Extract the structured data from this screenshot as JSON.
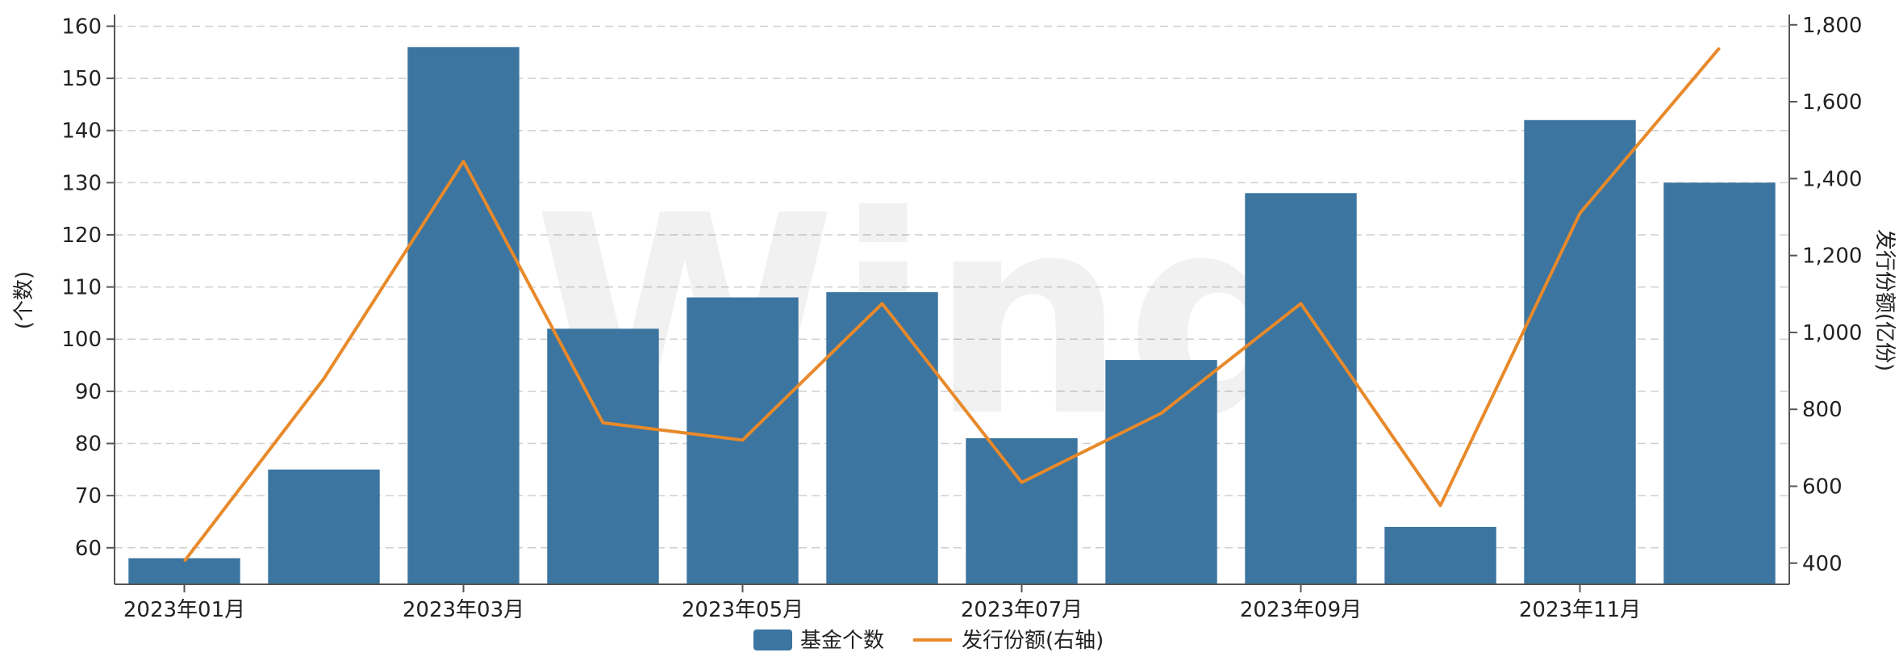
{
  "chart_data": {
    "type": "bar",
    "categories": [
      "2023年01月",
      "2023年02月",
      "2023年03月",
      "2023年04月",
      "2023年05月",
      "2023年06月",
      "2023年07月",
      "2023年08月",
      "2023年09月",
      "2023年10月",
      "2023年11月",
      "2023年12月"
    ],
    "x_tick_labels": [
      "2023年01月",
      "2023年03月",
      "2023年05月",
      "2023年07月",
      "2023年09月",
      "2023年11月"
    ],
    "series": [
      {
        "name": "基金个数",
        "kind": "bar",
        "axis": "left",
        "color": "#3b75a0",
        "values": [
          58,
          75,
          156,
          102,
          108,
          109,
          81,
          96,
          128,
          64,
          142,
          130
        ]
      },
      {
        "name": "发行份额(右轴)",
        "kind": "line",
        "axis": "right",
        "color": "#e8892a",
        "values": [
          405,
          880,
          1445,
          765,
          720,
          1075,
          610,
          790,
          1075,
          550,
          1310,
          1740
        ]
      }
    ],
    "ylabel": "(个数)",
    "ylabel_right": "发行份额(亿份)",
    "ylim": [
      53,
      161
    ],
    "ylim_right": [
      345,
      1810
    ],
    "y_ticks": [
      "60",
      "70",
      "80",
      "90",
      "100",
      "110",
      "120",
      "130",
      "140",
      "150",
      "160"
    ],
    "y_tick_values": [
      60,
      70,
      80,
      90,
      100,
      110,
      120,
      130,
      140,
      150,
      160
    ],
    "y_right_ticks": [
      "400",
      "600",
      "800",
      "1,000",
      "1,200",
      "1,400",
      "1,600",
      "1,800"
    ],
    "y_right_tick_values": [
      400,
      600,
      800,
      1000,
      1200,
      1400,
      1600,
      1800
    ],
    "grid": true,
    "legend_position": "bottom-center"
  }
}
